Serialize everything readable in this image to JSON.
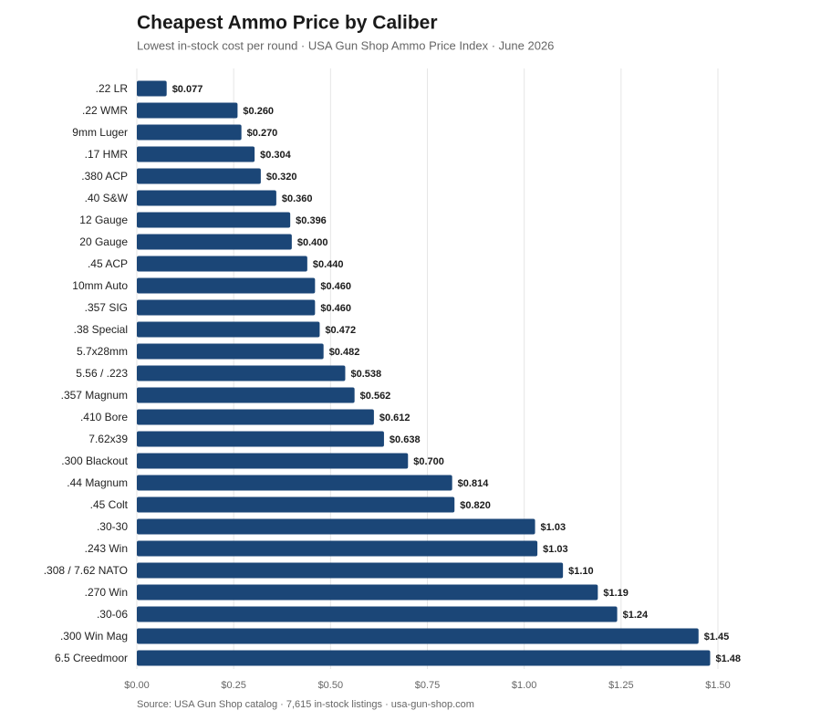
{
  "chart_data": {
    "type": "hbar",
    "title": "Cheapest Ammo Price by Caliber",
    "subtitle": "Lowest in-stock cost per round · USA Gun Shop Ammo Price Index · June 2026",
    "source": "Source: USA Gun Shop catalog · 7,615 in-stock listings · usa-gun-shop.com",
    "categories": [
      ".22 LR",
      ".22 WMR",
      "9mm Luger",
      ".17 HMR",
      ".380 ACP",
      ".40 S&W",
      "12 Gauge",
      "20 Gauge",
      ".45 ACP",
      "10mm Auto",
      ".357 SIG",
      ".38 Special",
      "5.7x28mm",
      "5.56 / .223",
      ".357 Magnum",
      ".410 Bore",
      "7.62x39",
      ".300 Blackout",
      ".44 Magnum",
      ".45 Colt",
      ".30-30",
      ".243 Win",
      ".308 / 7.62 NATO",
      ".270 Win",
      ".30-06",
      ".300 Win Mag",
      "6.5 Creedmoor"
    ],
    "values": [
      0.077,
      0.26,
      0.27,
      0.304,
      0.32,
      0.36,
      0.396,
      0.4,
      0.44,
      0.46,
      0.46,
      0.472,
      0.482,
      0.538,
      0.562,
      0.612,
      0.638,
      0.7,
      0.814,
      0.82,
      1.028,
      1.034,
      1.1,
      1.19,
      1.24,
      1.45,
      1.48
    ],
    "value_labels": [
      "$0.077",
      "$0.260",
      "$0.270",
      "$0.304",
      "$0.320",
      "$0.360",
      "$0.396",
      "$0.400",
      "$0.440",
      "$0.460",
      "$0.460",
      "$0.472",
      "$0.482",
      "$0.538",
      "$0.562",
      "$0.612",
      "$0.638",
      "$0.700",
      "$0.814",
      "$0.820",
      "$1.03",
      "$1.03",
      "$1.10",
      "$1.19",
      "$1.24",
      "$1.45",
      "$1.48"
    ],
    "color": "#1b4677",
    "xlim": [
      0,
      1.6
    ],
    "xticks": [
      {
        "value": 0,
        "label": "$0.00"
      },
      {
        "value": 0.25,
        "label": "$0.25"
      },
      {
        "value": 0.5,
        "label": "$0.50"
      },
      {
        "value": 0.75,
        "label": "$0.75"
      },
      {
        "value": 1,
        "label": "$1.00"
      },
      {
        "value": 1.25,
        "label": "$1.25"
      },
      {
        "value": 1.5,
        "label": "$1.50"
      }
    ],
    "grid": true
  }
}
